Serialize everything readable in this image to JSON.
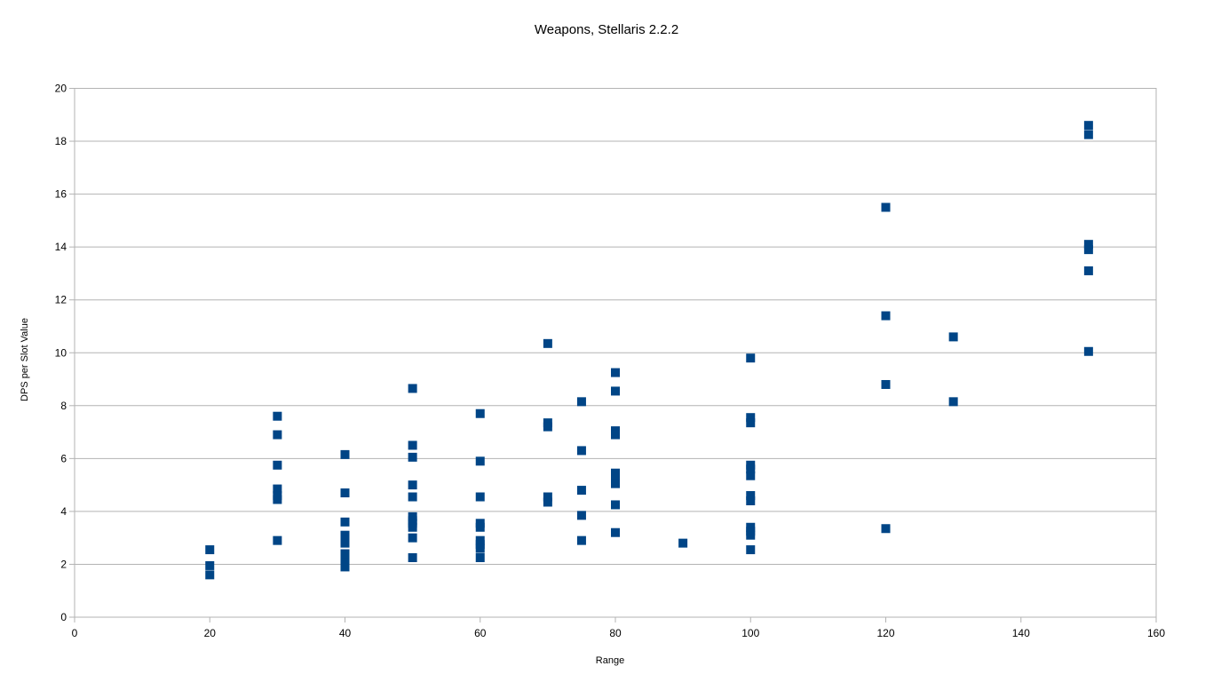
{
  "chart_data": {
    "type": "scatter",
    "title": "Weapons, Stellaris 2.2.2",
    "xlabel": "Range",
    "ylabel": "DPS per Slot Value",
    "xlim": [
      0,
      160
    ],
    "ylim": [
      0,
      20
    ],
    "xticks": [
      0,
      20,
      40,
      60,
      80,
      100,
      120,
      140,
      160
    ],
    "yticks": [
      0,
      2,
      4,
      6,
      8,
      10,
      12,
      14,
      16,
      18,
      20
    ],
    "grid": "horizontal",
    "legend": "none",
    "marker": "square",
    "color": "#004586",
    "points": [
      [
        20,
        2.55
      ],
      [
        20,
        1.95
      ],
      [
        20,
        1.6
      ],
      [
        30,
        7.6
      ],
      [
        30,
        6.9
      ],
      [
        30,
        5.75
      ],
      [
        30,
        4.85
      ],
      [
        30,
        4.6
      ],
      [
        30,
        4.45
      ],
      [
        30,
        2.9
      ],
      [
        40,
        6.15
      ],
      [
        40,
        4.7
      ],
      [
        40,
        3.6
      ],
      [
        40,
        3.1
      ],
      [
        40,
        2.95
      ],
      [
        40,
        2.8
      ],
      [
        40,
        2.4
      ],
      [
        40,
        2.2
      ],
      [
        40,
        2.05
      ],
      [
        40,
        1.9
      ],
      [
        50,
        8.65
      ],
      [
        50,
        6.5
      ],
      [
        50,
        6.05
      ],
      [
        50,
        5.0
      ],
      [
        50,
        4.55
      ],
      [
        50,
        3.8
      ],
      [
        50,
        3.65
      ],
      [
        50,
        3.55
      ],
      [
        50,
        3.4
      ],
      [
        50,
        3.0
      ],
      [
        50,
        2.25
      ],
      [
        60,
        7.7
      ],
      [
        60,
        5.9
      ],
      [
        60,
        4.55
      ],
      [
        60,
        3.55
      ],
      [
        60,
        3.4
      ],
      [
        60,
        2.9
      ],
      [
        60,
        2.75
      ],
      [
        60,
        2.6
      ],
      [
        60,
        2.25
      ],
      [
        70,
        10.35
      ],
      [
        70,
        7.35
      ],
      [
        70,
        7.2
      ],
      [
        70,
        4.55
      ],
      [
        70,
        4.35
      ],
      [
        75,
        8.15
      ],
      [
        75,
        6.3
      ],
      [
        75,
        4.8
      ],
      [
        75,
        3.85
      ],
      [
        75,
        2.9
      ],
      [
        80,
        9.25
      ],
      [
        80,
        8.55
      ],
      [
        80,
        7.05
      ],
      [
        80,
        6.9
      ],
      [
        80,
        5.45
      ],
      [
        80,
        5.25
      ],
      [
        80,
        5.05
      ],
      [
        80,
        4.25
      ],
      [
        80,
        3.2
      ],
      [
        90,
        2.8
      ],
      [
        100,
        9.8
      ],
      [
        100,
        7.55
      ],
      [
        100,
        7.35
      ],
      [
        100,
        5.75
      ],
      [
        100,
        5.6
      ],
      [
        100,
        5.35
      ],
      [
        100,
        4.6
      ],
      [
        100,
        4.4
      ],
      [
        100,
        3.4
      ],
      [
        100,
        3.25
      ],
      [
        100,
        3.1
      ],
      [
        100,
        2.55
      ],
      [
        120,
        15.5
      ],
      [
        120,
        11.4
      ],
      [
        120,
        8.8
      ],
      [
        120,
        3.35
      ],
      [
        130,
        10.6
      ],
      [
        130,
        8.15
      ],
      [
        150,
        18.6
      ],
      [
        150,
        18.25
      ],
      [
        150,
        14.1
      ],
      [
        150,
        13.9
      ],
      [
        150,
        13.1
      ],
      [
        150,
        10.05
      ]
    ]
  }
}
